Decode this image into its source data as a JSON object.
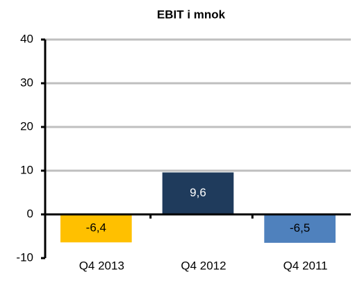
{
  "chart_data": {
    "type": "bar",
    "title": "EBIT i mnok",
    "categories": [
      "Q4 2013",
      "Q4 2012",
      "Q4 2011"
    ],
    "values": [
      -6.4,
      9.6,
      -6.5
    ],
    "value_labels": [
      "-6,4",
      "9,6",
      "-6,5"
    ],
    "colors": [
      "#ffc000",
      "#1f3b5c",
      "#4f81bd"
    ],
    "value_label_colors": [
      "#000000",
      "#ffffff",
      "#000000"
    ],
    "ylim": [
      -10,
      40
    ],
    "yticks": [
      -10,
      0,
      10,
      20,
      30,
      40
    ],
    "grid": true
  }
}
